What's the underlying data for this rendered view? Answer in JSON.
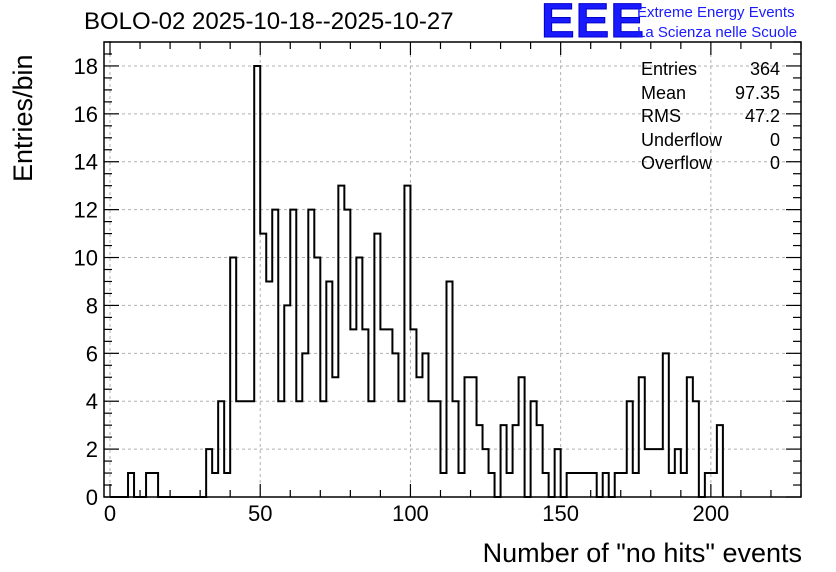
{
  "title": "BOLO-02 2025-10-18--2025-10-27",
  "logo": {
    "mark": "EEE",
    "line1": "Extreme Energy Events",
    "line2": "La Scienza nelle Scuole",
    "color": "#1a1aff"
  },
  "stats": [
    {
      "label": "Entries",
      "value": "364"
    },
    {
      "label": "Mean",
      "value": "97.35"
    },
    {
      "label": "RMS",
      "value": "47.2"
    },
    {
      "label": "Underflow",
      "value": "0"
    },
    {
      "label": "Overflow",
      "value": "0"
    }
  ],
  "chart_data": {
    "type": "histogram",
    "title": "BOLO-02 2025-10-18--2025-10-27",
    "xlabel": "Number of \"no hits\" events",
    "ylabel": "Entries/bin",
    "xlim": [
      -2,
      230
    ],
    "ylim": [
      0,
      19
    ],
    "grid": true,
    "bin_width": 2,
    "bin_start": 0,
    "x_ticks": [
      "0",
      "50",
      "100",
      "150",
      "200"
    ],
    "x_tick_values": [
      0,
      50,
      100,
      150,
      200
    ],
    "y_ticks": [
      "0",
      "2",
      "4",
      "6",
      "8",
      "10",
      "12",
      "14",
      "16",
      "18"
    ],
    "y_tick_values": [
      0,
      2,
      4,
      6,
      8,
      10,
      12,
      14,
      16,
      18
    ],
    "values": [
      0,
      0,
      0,
      1,
      0,
      0,
      1,
      1,
      0,
      0,
      0,
      0,
      0,
      0,
      0,
      0,
      2,
      1,
      4,
      1,
      10,
      4,
      4,
      4,
      18,
      11,
      9,
      12,
      4,
      8,
      12,
      4,
      6,
      12,
      10,
      4,
      9,
      5,
      13,
      12,
      7,
      10,
      7,
      4,
      11,
      7,
      7,
      6,
      4,
      13,
      7,
      5,
      6,
      4,
      4,
      1,
      9,
      4,
      1,
      5,
      5,
      3,
      2,
      1,
      0,
      3,
      1,
      3,
      5,
      0,
      4,
      3,
      1,
      0,
      2,
      0,
      1,
      1,
      1,
      1,
      1,
      0,
      1,
      0,
      1,
      1,
      4,
      1,
      5,
      2,
      2,
      2,
      6,
      1,
      2,
      1,
      5,
      4,
      0,
      1,
      1,
      3
    ],
    "line_color": "#000000"
  }
}
